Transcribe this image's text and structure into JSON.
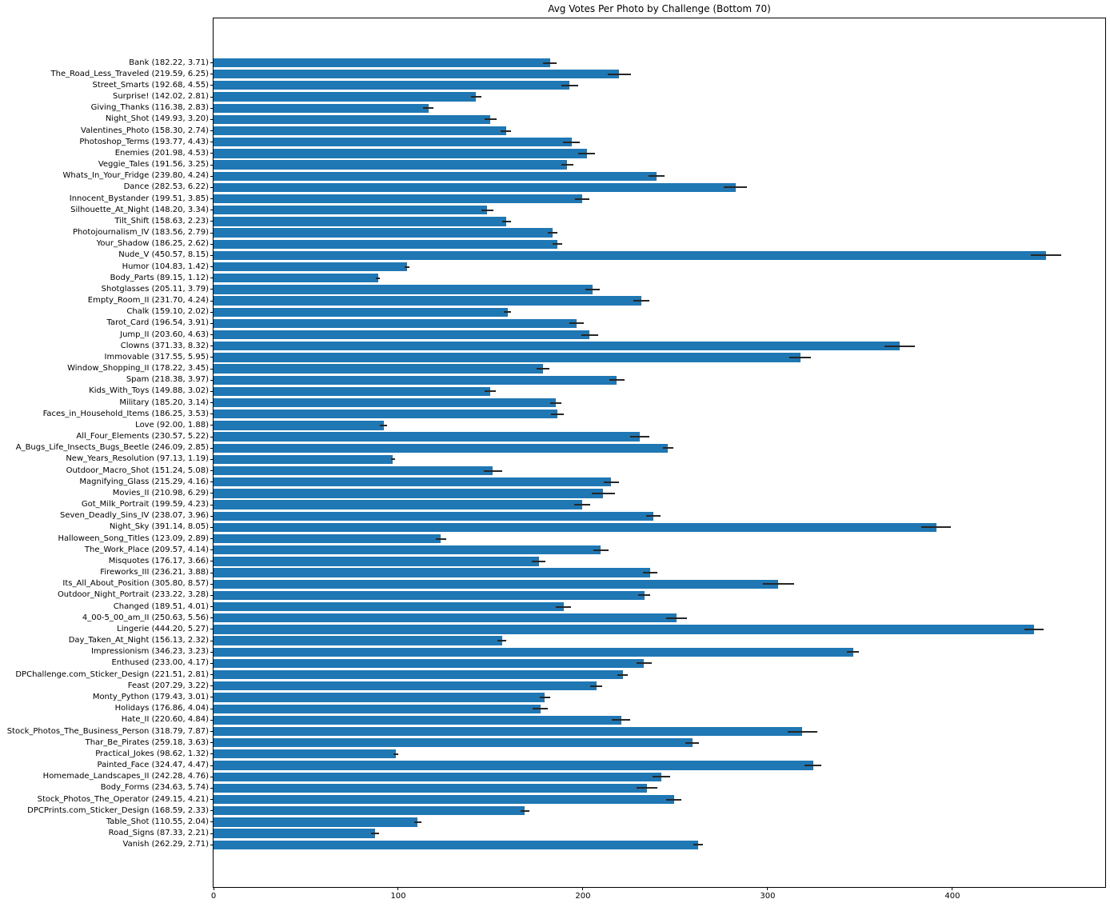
{
  "chart_data": {
    "type": "bar",
    "orientation": "horizontal",
    "title": "Avg Votes Per Photo by Challenge (Bottom 70)",
    "xlabel": "",
    "ylabel": "",
    "xlim": [
      0,
      482.7
    ],
    "xticks": [
      0,
      100,
      200,
      300,
      400
    ],
    "grid": false,
    "legend": "none",
    "bar_color": "#1f77b4",
    "error_color": "#262626",
    "categories": [
      "Bank (182.22, 3.71)",
      "The_Road_Less_Traveled (219.59, 6.25)",
      "Street_Smarts (192.68, 4.55)",
      "Surprise! (142.02, 2.81)",
      "Giving_Thanks (116.38, 2.83)",
      "Night_Shot (149.93, 3.20)",
      "Valentines_Photo (158.30, 2.74)",
      "Photoshop_Terms (193.77, 4.43)",
      "Enemies (201.98, 4.53)",
      "Veggie_Tales (191.56, 3.25)",
      "Whats_In_Your_Fridge (239.80, 4.24)",
      "Dance (282.53, 6.22)",
      "Innocent_Bystander (199.51, 3.85)",
      "Silhouette_At_Night (148.20, 3.34)",
      "Tilt_Shift (158.63, 2.23)",
      "Photojournalism_IV (183.56, 2.79)",
      "Your_Shadow (186.25, 2.62)",
      "Nude_V (450.57, 8.15)",
      "Humor (104.83, 1.42)",
      "Body_Parts (89.15, 1.12)",
      "Shotglasses (205.11, 3.79)",
      "Empty_Room_II (231.70, 4.24)",
      "Chalk (159.10, 2.02)",
      "Tarot_Card (196.54, 3.91)",
      "Jump_II (203.60, 4.63)",
      "Clowns (371.33, 8.32)",
      "Immovable (317.55, 5.95)",
      "Window_Shopping_II (178.22, 3.45)",
      "Spam (218.38, 3.97)",
      "Kids_With_Toys (149.88, 3.02)",
      "Military (185.20, 3.14)",
      "Faces_in_Household_Items (186.25, 3.53)",
      "Love (92.00, 1.88)",
      "All_Four_Elements (230.57, 5.22)",
      "A_Bugs_Life_Insects_Bugs_Beetle (246.09, 2.85)",
      "New_Years_Resolution (97.13, 1.19)",
      "Outdoor_Macro_Shot (151.24, 5.08)",
      "Magnifying_Glass (215.29, 4.16)",
      "Movies_II (210.98, 6.29)",
      "Got_Milk_Portrait (199.59, 4.23)",
      "Seven_Deadly_Sins_IV (238.07, 3.96)",
      "Night_Sky (391.14, 8.05)",
      "Halloween_Song_Titles (123.09, 2.89)",
      "The_Work_Place (209.57, 4.14)",
      "Misquotes (176.17, 3.66)",
      "Fireworks_III (236.21, 3.88)",
      "Its_All_About_Position (305.80, 8.57)",
      "Outdoor_Night_Portrait (233.22, 3.28)",
      "Changed (189.51, 4.01)",
      "4_00-5_00_am_II (250.63, 5.56)",
      "Lingerie (444.20, 5.27)",
      "Day_Taken_At_Night (156.13, 2.32)",
      "Impressionism (346.23, 3.23)",
      "Enthused (233.00, 4.17)",
      "DPChallenge.com_Sticker_Design (221.51, 2.81)",
      "Feast (207.29, 3.22)",
      "Monty_Python (179.43, 3.01)",
      "Holidays (176.86, 4.04)",
      "Hate_II (220.60, 4.84)",
      "Stock_Photos_The_Business_Person (318.79, 7.87)",
      "Thar_Be_Pirates (259.18, 3.63)",
      "Practical_Jokes (98.62, 1.32)",
      "Painted_Face (324.47, 4.47)",
      "Homemade_Landscapes_II (242.28, 4.76)",
      "Body_Forms (234.63, 5.74)",
      "Stock_Photos_The_Operator (249.15, 4.21)",
      "DPCPrints.com_Sticker_Design (168.59, 2.33)",
      "Table_Shot (110.55, 2.04)",
      "Road_Signs (87.33, 2.21)",
      "Vanish (262.29, 2.71)"
    ],
    "values": [
      182.22,
      219.59,
      192.68,
      142.02,
      116.38,
      149.93,
      158.3,
      193.77,
      201.98,
      191.56,
      239.8,
      282.53,
      199.51,
      148.2,
      158.63,
      183.56,
      186.25,
      450.57,
      104.83,
      89.15,
      205.11,
      231.7,
      159.1,
      196.54,
      203.6,
      371.33,
      317.55,
      178.22,
      218.38,
      149.88,
      185.2,
      186.25,
      92.0,
      230.57,
      246.09,
      97.13,
      151.24,
      215.29,
      210.98,
      199.59,
      238.07,
      391.14,
      123.09,
      209.57,
      176.17,
      236.21,
      305.8,
      233.22,
      189.51,
      250.63,
      444.2,
      156.13,
      346.23,
      233.0,
      221.51,
      207.29,
      179.43,
      176.86,
      220.6,
      318.79,
      259.18,
      98.62,
      324.47,
      242.28,
      234.63,
      249.15,
      168.59,
      110.55,
      87.33,
      262.29
    ],
    "errors": [
      3.71,
      6.25,
      4.55,
      2.81,
      2.83,
      3.2,
      2.74,
      4.43,
      4.53,
      3.25,
      4.24,
      6.22,
      3.85,
      3.34,
      2.23,
      2.79,
      2.62,
      8.15,
      1.42,
      1.12,
      3.79,
      4.24,
      2.02,
      3.91,
      4.63,
      8.32,
      5.95,
      3.45,
      3.97,
      3.02,
      3.14,
      3.53,
      1.88,
      5.22,
      2.85,
      1.19,
      5.08,
      4.16,
      6.29,
      4.23,
      3.96,
      8.05,
      2.89,
      4.14,
      3.66,
      3.88,
      8.57,
      3.28,
      4.01,
      5.56,
      5.27,
      2.32,
      3.23,
      4.17,
      2.81,
      3.22,
      3.01,
      4.04,
      4.84,
      7.87,
      3.63,
      1.32,
      4.47,
      4.76,
      5.74,
      4.21,
      2.33,
      2.04,
      2.21,
      2.71
    ],
    "xtick_labels": [
      "0",
      "100",
      "200",
      "300",
      "400"
    ]
  }
}
